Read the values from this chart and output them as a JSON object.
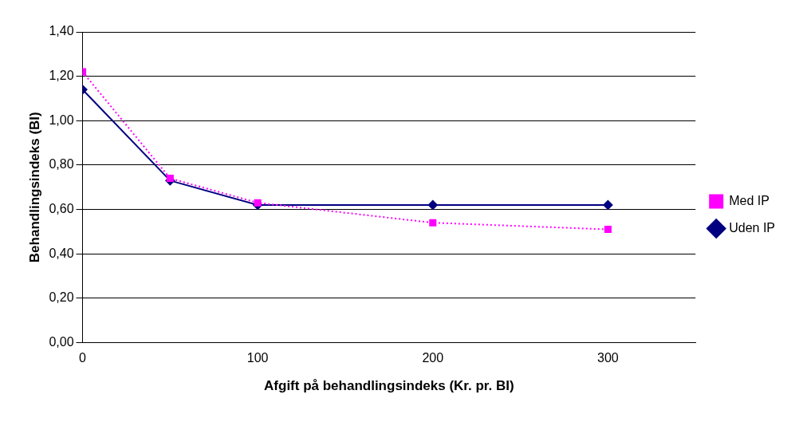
{
  "chart_data": {
    "type": "line",
    "xlabel": "Afgift på behandlingsindeks (Kr. pr. BI)",
    "ylabel": "Behandlingsindeks (BI)",
    "x": [
      0,
      50,
      100,
      200,
      300
    ],
    "series": [
      {
        "name": "Uden IP",
        "color": "#000080",
        "values": [
          1.14,
          0.73,
          0.62,
          0.62,
          0.62
        ],
        "marker": "diamond",
        "line_style": "solid"
      },
      {
        "name": "Med IP",
        "color": "#ff00ff",
        "values": [
          1.22,
          0.74,
          0.63,
          0.54,
          0.51
        ],
        "marker": "square",
        "line_style": "dotted"
      }
    ],
    "xlim": [
      0,
      350
    ],
    "xticks": [
      0,
      100,
      200,
      300
    ],
    "ylim": [
      0,
      1.4
    ],
    "yticks": [
      {
        "value": 0,
        "label": "0,00"
      },
      {
        "value": 0.2,
        "label": "0,20"
      },
      {
        "value": 0.4,
        "label": "0,40"
      },
      {
        "value": 0.6,
        "label": "0,60"
      },
      {
        "value": 0.8,
        "label": "0,80"
      },
      {
        "value": 1,
        "label": "1,00"
      },
      {
        "value": 1.2,
        "label": "1,20"
      },
      {
        "value": 1.4,
        "label": "1,40"
      }
    ],
    "grid": "y",
    "legend": "right"
  }
}
